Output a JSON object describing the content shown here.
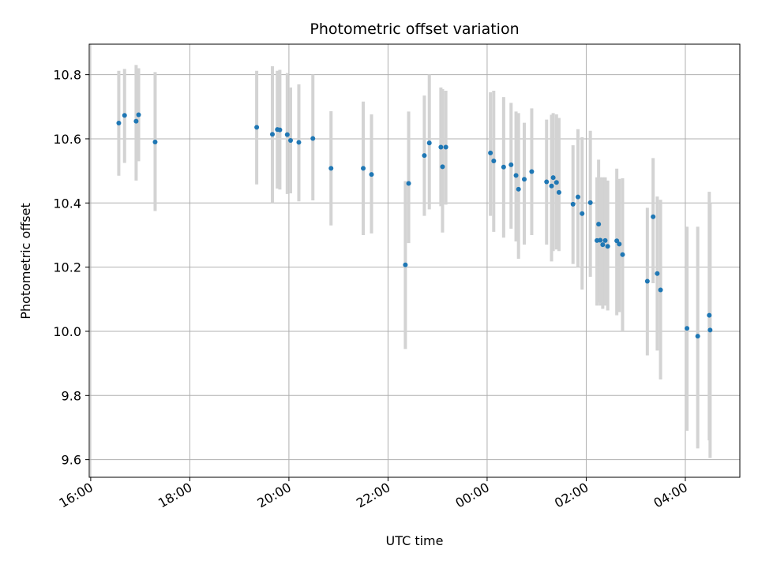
{
  "chart_data": {
    "type": "scatter",
    "title": "Photometric offset variation",
    "xlabel": "UTC time",
    "ylabel": "Photometric offset",
    "grid": true,
    "legend": "none",
    "xlim_hours": [
      15.97,
      29.1
    ],
    "ylim": [
      9.545,
      10.895
    ],
    "x_ticks": [
      {
        "hour": 16,
        "label": "16:00"
      },
      {
        "hour": 18,
        "label": "18:00"
      },
      {
        "hour": 20,
        "label": "20:00"
      },
      {
        "hour": 22,
        "label": "22:00"
      },
      {
        "hour": 24,
        "label": "00:00"
      },
      {
        "hour": 26,
        "label": "02:00"
      },
      {
        "hour": 28,
        "label": "04:00"
      }
    ],
    "y_ticks": [
      {
        "value": 9.6,
        "label": "9.6"
      },
      {
        "value": 9.8,
        "label": "9.8"
      },
      {
        "value": 10.0,
        "label": "10.0"
      },
      {
        "value": 10.2,
        "label": "10.2"
      },
      {
        "value": 10.4,
        "label": "10.4"
      },
      {
        "value": 10.6,
        "label": "10.6"
      },
      {
        "value": 10.8,
        "label": "10.8"
      }
    ],
    "colors": {
      "points": "#1f77b4",
      "errorbars": "#d3d3d3",
      "grid": "#b0b0b0",
      "axes": "#000000"
    },
    "series": [
      {
        "x_time": [
          "16:34",
          "16:41",
          "16:55",
          "16:58",
          "17:18",
          "19:21",
          "19:40",
          "19:46",
          "19:49",
          "19:58",
          "20:02",
          "20:12",
          "20:29",
          "20:51",
          "21:30",
          "21:40",
          "22:21",
          "22:25",
          "22:44",
          "22:50",
          "23:04",
          "23:06",
          "23:10",
          "00:04",
          "00:08",
          "00:20",
          "00:29",
          "00:35",
          "00:38",
          "00:45",
          "00:54",
          "01:12",
          "01:18",
          "01:20",
          "01:24",
          "01:27",
          "01:44",
          "01:50",
          "01:55",
          "02:05",
          "02:13",
          "02:15",
          "02:17",
          "02:20",
          "02:23",
          "02:26",
          "02:37",
          "02:40",
          "02:44",
          "03:14",
          "03:21",
          "03:26",
          "03:30",
          "04:02",
          "04:15",
          "04:29",
          "04:30"
        ],
        "y": [
          10.649,
          10.673,
          10.655,
          10.675,
          10.59,
          10.636,
          10.614,
          10.629,
          10.628,
          10.613,
          10.595,
          10.589,
          10.601,
          10.508,
          10.508,
          10.489,
          10.207,
          10.461,
          10.548,
          10.587,
          10.574,
          10.513,
          10.574,
          10.556,
          10.531,
          10.512,
          10.519,
          10.486,
          10.443,
          10.474,
          10.498,
          10.466,
          10.453,
          10.479,
          10.464,
          10.433,
          10.396,
          10.419,
          10.367,
          10.401,
          10.283,
          10.334,
          10.284,
          10.27,
          10.283,
          10.265,
          10.282,
          10.272,
          10.239,
          10.156,
          10.357,
          10.18,
          10.129,
          10.009,
          9.985,
          10.05,
          10.004
        ],
        "yerr_low": [
          10.485,
          10.525,
          10.47,
          10.53,
          10.375,
          10.458,
          10.4,
          10.445,
          10.442,
          10.428,
          10.43,
          10.405,
          10.408,
          10.33,
          10.3,
          10.305,
          9.945,
          10.275,
          10.36,
          10.38,
          10.39,
          10.308,
          10.395,
          10.36,
          10.31,
          10.292,
          10.32,
          10.28,
          10.226,
          10.27,
          10.3,
          10.27,
          10.218,
          10.25,
          10.255,
          10.25,
          10.21,
          10.2,
          10.13,
          10.17,
          10.08,
          10.09,
          10.08,
          10.07,
          10.08,
          10.065,
          10.05,
          10.06,
          10.0,
          9.925,
          10.15,
          9.94,
          9.85,
          9.69,
          9.635,
          9.66,
          9.605
        ],
        "yerr_high": [
          10.812,
          10.818,
          10.83,
          10.82,
          10.808,
          10.812,
          10.826,
          10.812,
          10.815,
          10.805,
          10.76,
          10.77,
          10.8,
          10.686,
          10.716,
          10.676,
          10.468,
          10.685,
          10.735,
          10.8,
          10.76,
          10.755,
          10.75,
          10.745,
          10.75,
          10.73,
          10.712,
          10.685,
          10.68,
          10.65,
          10.695,
          10.66,
          10.675,
          10.68,
          10.676,
          10.665,
          10.58,
          10.63,
          10.605,
          10.625,
          10.48,
          10.535,
          10.48,
          10.48,
          10.48,
          10.47,
          10.507,
          10.475,
          10.477,
          10.385,
          10.54,
          10.42,
          10.41,
          10.326,
          10.326,
          10.435,
          10.4
        ]
      }
    ]
  }
}
